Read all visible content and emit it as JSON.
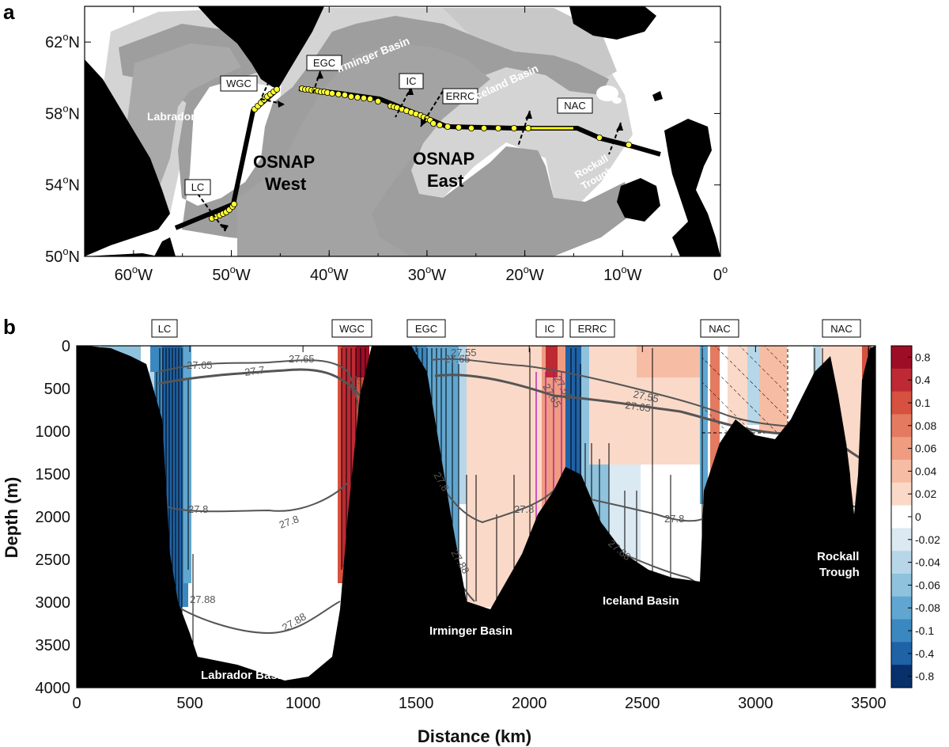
{
  "figure": {
    "panel_a_label": "a",
    "panel_b_label": "b",
    "map": {
      "lat_ticks": [
        {
          "lat": 62,
          "label": "62",
          "suffix": "N"
        },
        {
          "lat": 58,
          "label": "58",
          "suffix": "N"
        },
        {
          "lat": 54,
          "label": "54",
          "suffix": "N"
        },
        {
          "lat": 50,
          "label": "50",
          "suffix": "N"
        }
      ],
      "lon_ticks": [
        {
          "lon": -60,
          "label": "60",
          "suffix": "W"
        },
        {
          "lon": -50,
          "label": "50",
          "suffix": "W"
        },
        {
          "lon": -40,
          "label": "40",
          "suffix": "W"
        },
        {
          "lon": -30,
          "label": "30",
          "suffix": "W"
        },
        {
          "lon": -20,
          "label": "20",
          "suffix": "W"
        },
        {
          "lon": -10,
          "label": "10",
          "suffix": "W"
        },
        {
          "lon": 0,
          "label": "0",
          "suffix": ""
        }
      ],
      "current_boxes": [
        "WGC",
        "EGC",
        "IC",
        "ERRC",
        "NAC",
        "LC"
      ],
      "basin_labels": [
        "Irminger Basin",
        "Iceland Basin",
        "Labrador Basin",
        "Rockall",
        "Trough"
      ],
      "section_labels": {
        "west_1": "OSNAP",
        "west_2": "West",
        "east_1": "OSNAP",
        "east_2": "East"
      },
      "degree_symbol": "o"
    },
    "section": {
      "x_axis_title": "Distance (km)",
      "y_axis_title": "Depth (m)",
      "current_boxes": [
        "LC",
        "WGC",
        "EGC",
        "IC",
        "ERRC",
        "NAC",
        "NAC"
      ],
      "basin_labels": [
        "Labrador Basin",
        "Irminger Basin",
        "Iceland Basin",
        "Rockall",
        "Trough"
      ],
      "contour_labels": [
        "27.65",
        "27.7",
        "27.65",
        "27.7",
        "27.55",
        "27.65",
        "27.55",
        "27.65",
        "27.55",
        "27.65",
        "27.8",
        "27.8",
        "27.8",
        "27.8",
        "27.8",
        "27.88",
        "27.88",
        "27.88",
        "27.88"
      ]
    },
    "colorbar": {
      "labels": [
        "0.8",
        "0.4",
        "0.1",
        "0.08",
        "0.06",
        "0.04",
        "0.02",
        "0",
        "-0.02",
        "-0.04",
        "-0.06",
        "-0.08",
        "-0.1",
        "-0.4",
        "-0.8"
      ],
      "colors_top_to_bottom": [
        "#9e0d26",
        "#bd2a33",
        "#d6513f",
        "#e47a60",
        "#ef9c80",
        "#f6bda4",
        "#fad9c8",
        "#ffffff",
        "#dbe9f2",
        "#b7d6e8",
        "#8ec2dd",
        "#60a6d0",
        "#3b88c0",
        "#1f62a6",
        "#08306b"
      ]
    }
  },
  "chart_data": [
    {
      "type": "other",
      "description_kind": "map",
      "x_ticks": [
        -60,
        -50,
        -40,
        -30,
        -20,
        -10,
        0
      ],
      "y_ticks": [
        62,
        58,
        54,
        50
      ],
      "xlim": [
        -65,
        0
      ],
      "ylim": [
        50,
        64
      ],
      "annotations": [
        "WGC",
        "EGC",
        "IC",
        "ERRC",
        "NAC",
        "LC",
        "Irminger Basin",
        "Iceland Basin",
        "Labrador Basin",
        "Rockall Trough",
        "OSNAP West",
        "OSNAP East"
      ]
    },
    {
      "type": "heatmap",
      "xlabel": "Distance (km)",
      "ylabel": "Depth (m)",
      "x_ticks": [
        0,
        500,
        1000,
        1500,
        2000,
        2500,
        3000,
        3500
      ],
      "y_ticks": [
        0,
        500,
        1000,
        1500,
        2000,
        2500,
        3000,
        3500,
        4000
      ],
      "xlim": [
        0,
        3530
      ],
      "ylim": [
        4000,
        0
      ],
      "colorbar_ticks": [
        0.8,
        0.4,
        0.1,
        0.08,
        0.06,
        0.04,
        0.02,
        0,
        -0.02,
        -0.04,
        -0.06,
        -0.08,
        -0.1,
        -0.4,
        -0.8
      ],
      "isopycnals": [
        "27.55",
        "27.65",
        "27.7",
        "27.8",
        "27.88"
      ]
    }
  ]
}
